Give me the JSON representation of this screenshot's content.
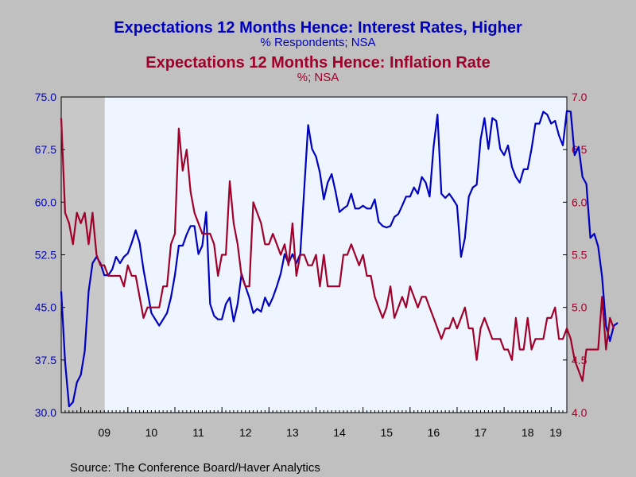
{
  "chart_data": {
    "type": "line",
    "title": "Expectations 12 Months Hence: Interest Rates, Higher",
    "subtitle": "% Respondents; NSA",
    "title2": "Expectations 12 Months Hence: Inflation Rate",
    "subtitle2": "%; NSA",
    "source": "Source:  The Conference Board/Haver Analytics",
    "x_start": 2008.583,
    "x_end": 2019.333,
    "x_step": 0.08333,
    "x_ticks": [
      "09",
      "10",
      "11",
      "12",
      "13",
      "14",
      "15",
      "16",
      "17",
      "18",
      "19"
    ],
    "y_left": {
      "ylim": [
        30.0,
        75.0
      ],
      "ticks": [
        "30.0",
        "37.5",
        "45.0",
        "52.5",
        "60.0",
        "67.5",
        "75.0"
      ],
      "color": "#0000c0"
    },
    "y_right": {
      "ylim": [
        4.0,
        7.0
      ],
      "ticks": [
        "4.0",
        "4.5",
        "5.0",
        "5.5",
        "6.0",
        "6.5",
        "7.0"
      ],
      "color": "#a0002a"
    },
    "recession_shading": [
      2008.583,
      2009.5
    ],
    "grid": false,
    "series": [
      {
        "axis": "left",
        "color": "#0000c0",
        "values": [
          47.3,
          37.2,
          30.9,
          31.5,
          34.3,
          35.4,
          38.8,
          47.3,
          51.3,
          52.2,
          51.3,
          49.6,
          49.6,
          50.4,
          52.2,
          51.3,
          52.2,
          52.7,
          54.2,
          56.0,
          54.2,
          50.4,
          47.3,
          44.2,
          43.3,
          42.4,
          43.3,
          44.2,
          46.4,
          49.6,
          53.8,
          53.8,
          55.4,
          56.6,
          56.6,
          52.6,
          53.8,
          58.6,
          45.5,
          43.8,
          43.3,
          43.3,
          45.5,
          46.4,
          43.0,
          45.5,
          49.8,
          48.0,
          46.4,
          44.2,
          44.8,
          44.4,
          46.4,
          45.2,
          46.4,
          48.0,
          49.8,
          52.6,
          51.3,
          52.6,
          51.3,
          52.6,
          61.9,
          71.0,
          67.6,
          66.5,
          64.2,
          60.4,
          62.8,
          64.0,
          61.5,
          58.6,
          59.1,
          59.5,
          61.2,
          59.1,
          59.1,
          59.5,
          59.1,
          59.1,
          60.4,
          57.2,
          56.6,
          56.4,
          56.6,
          57.9,
          58.3,
          59.5,
          60.8,
          60.8,
          62.1,
          61.2,
          63.6,
          62.8,
          60.8,
          67.9,
          72.5,
          61.2,
          60.6,
          61.2,
          60.4,
          59.5,
          52.2,
          54.9,
          60.8,
          62.1,
          62.5,
          68.9,
          72.0,
          67.6,
          72.0,
          71.6,
          67.6,
          66.7,
          68.1,
          65.0,
          63.6,
          62.8,
          64.7,
          64.7,
          67.6,
          71.2,
          71.2,
          72.9,
          72.5,
          71.2,
          71.6,
          69.5,
          68.1,
          73.0,
          72.9,
          66.7,
          67.9,
          63.6,
          62.6,
          54.9,
          55.5,
          53.7,
          49.4,
          42.4,
          40.2,
          42.4,
          42.8
        ]
      },
      {
        "axis": "right",
        "color": "#a0002a",
        "values": [
          6.8,
          5.9,
          5.8,
          5.6,
          5.9,
          5.8,
          5.9,
          5.6,
          5.9,
          5.5,
          5.4,
          5.4,
          5.3,
          5.3,
          5.3,
          5.3,
          5.2,
          5.4,
          5.3,
          5.3,
          5.1,
          4.9,
          5.0,
          5.0,
          5.0,
          5.0,
          5.2,
          5.2,
          5.6,
          5.7,
          6.7,
          6.3,
          6.5,
          6.1,
          5.9,
          5.8,
          5.7,
          5.7,
          5.7,
          5.6,
          5.3,
          5.5,
          5.5,
          6.2,
          5.8,
          5.6,
          5.3,
          5.2,
          5.2,
          6.0,
          5.9,
          5.8,
          5.6,
          5.6,
          5.7,
          5.6,
          5.5,
          5.6,
          5.4,
          5.8,
          5.3,
          5.5,
          5.5,
          5.4,
          5.4,
          5.5,
          5.2,
          5.5,
          5.2,
          5.2,
          5.2,
          5.2,
          5.5,
          5.5,
          5.6,
          5.5,
          5.4,
          5.5,
          5.3,
          5.3,
          5.1,
          5.0,
          4.9,
          5.0,
          5.2,
          4.9,
          5.0,
          5.1,
          5.0,
          5.2,
          5.1,
          5.0,
          5.1,
          5.1,
          5.0,
          4.9,
          4.8,
          4.7,
          4.8,
          4.8,
          4.9,
          4.8,
          4.9,
          5.0,
          4.8,
          4.8,
          4.5,
          4.8,
          4.9,
          4.8,
          4.7,
          4.7,
          4.7,
          4.6,
          4.6,
          4.5,
          4.9,
          4.6,
          4.6,
          4.9,
          4.6,
          4.7,
          4.7,
          4.7,
          4.9,
          4.9,
          5.0,
          4.7,
          4.7,
          4.8,
          4.7,
          4.5,
          4.4,
          4.3,
          4.6,
          4.6,
          4.6,
          4.6,
          5.1,
          4.6,
          4.9,
          4.8
        ]
      }
    ]
  }
}
